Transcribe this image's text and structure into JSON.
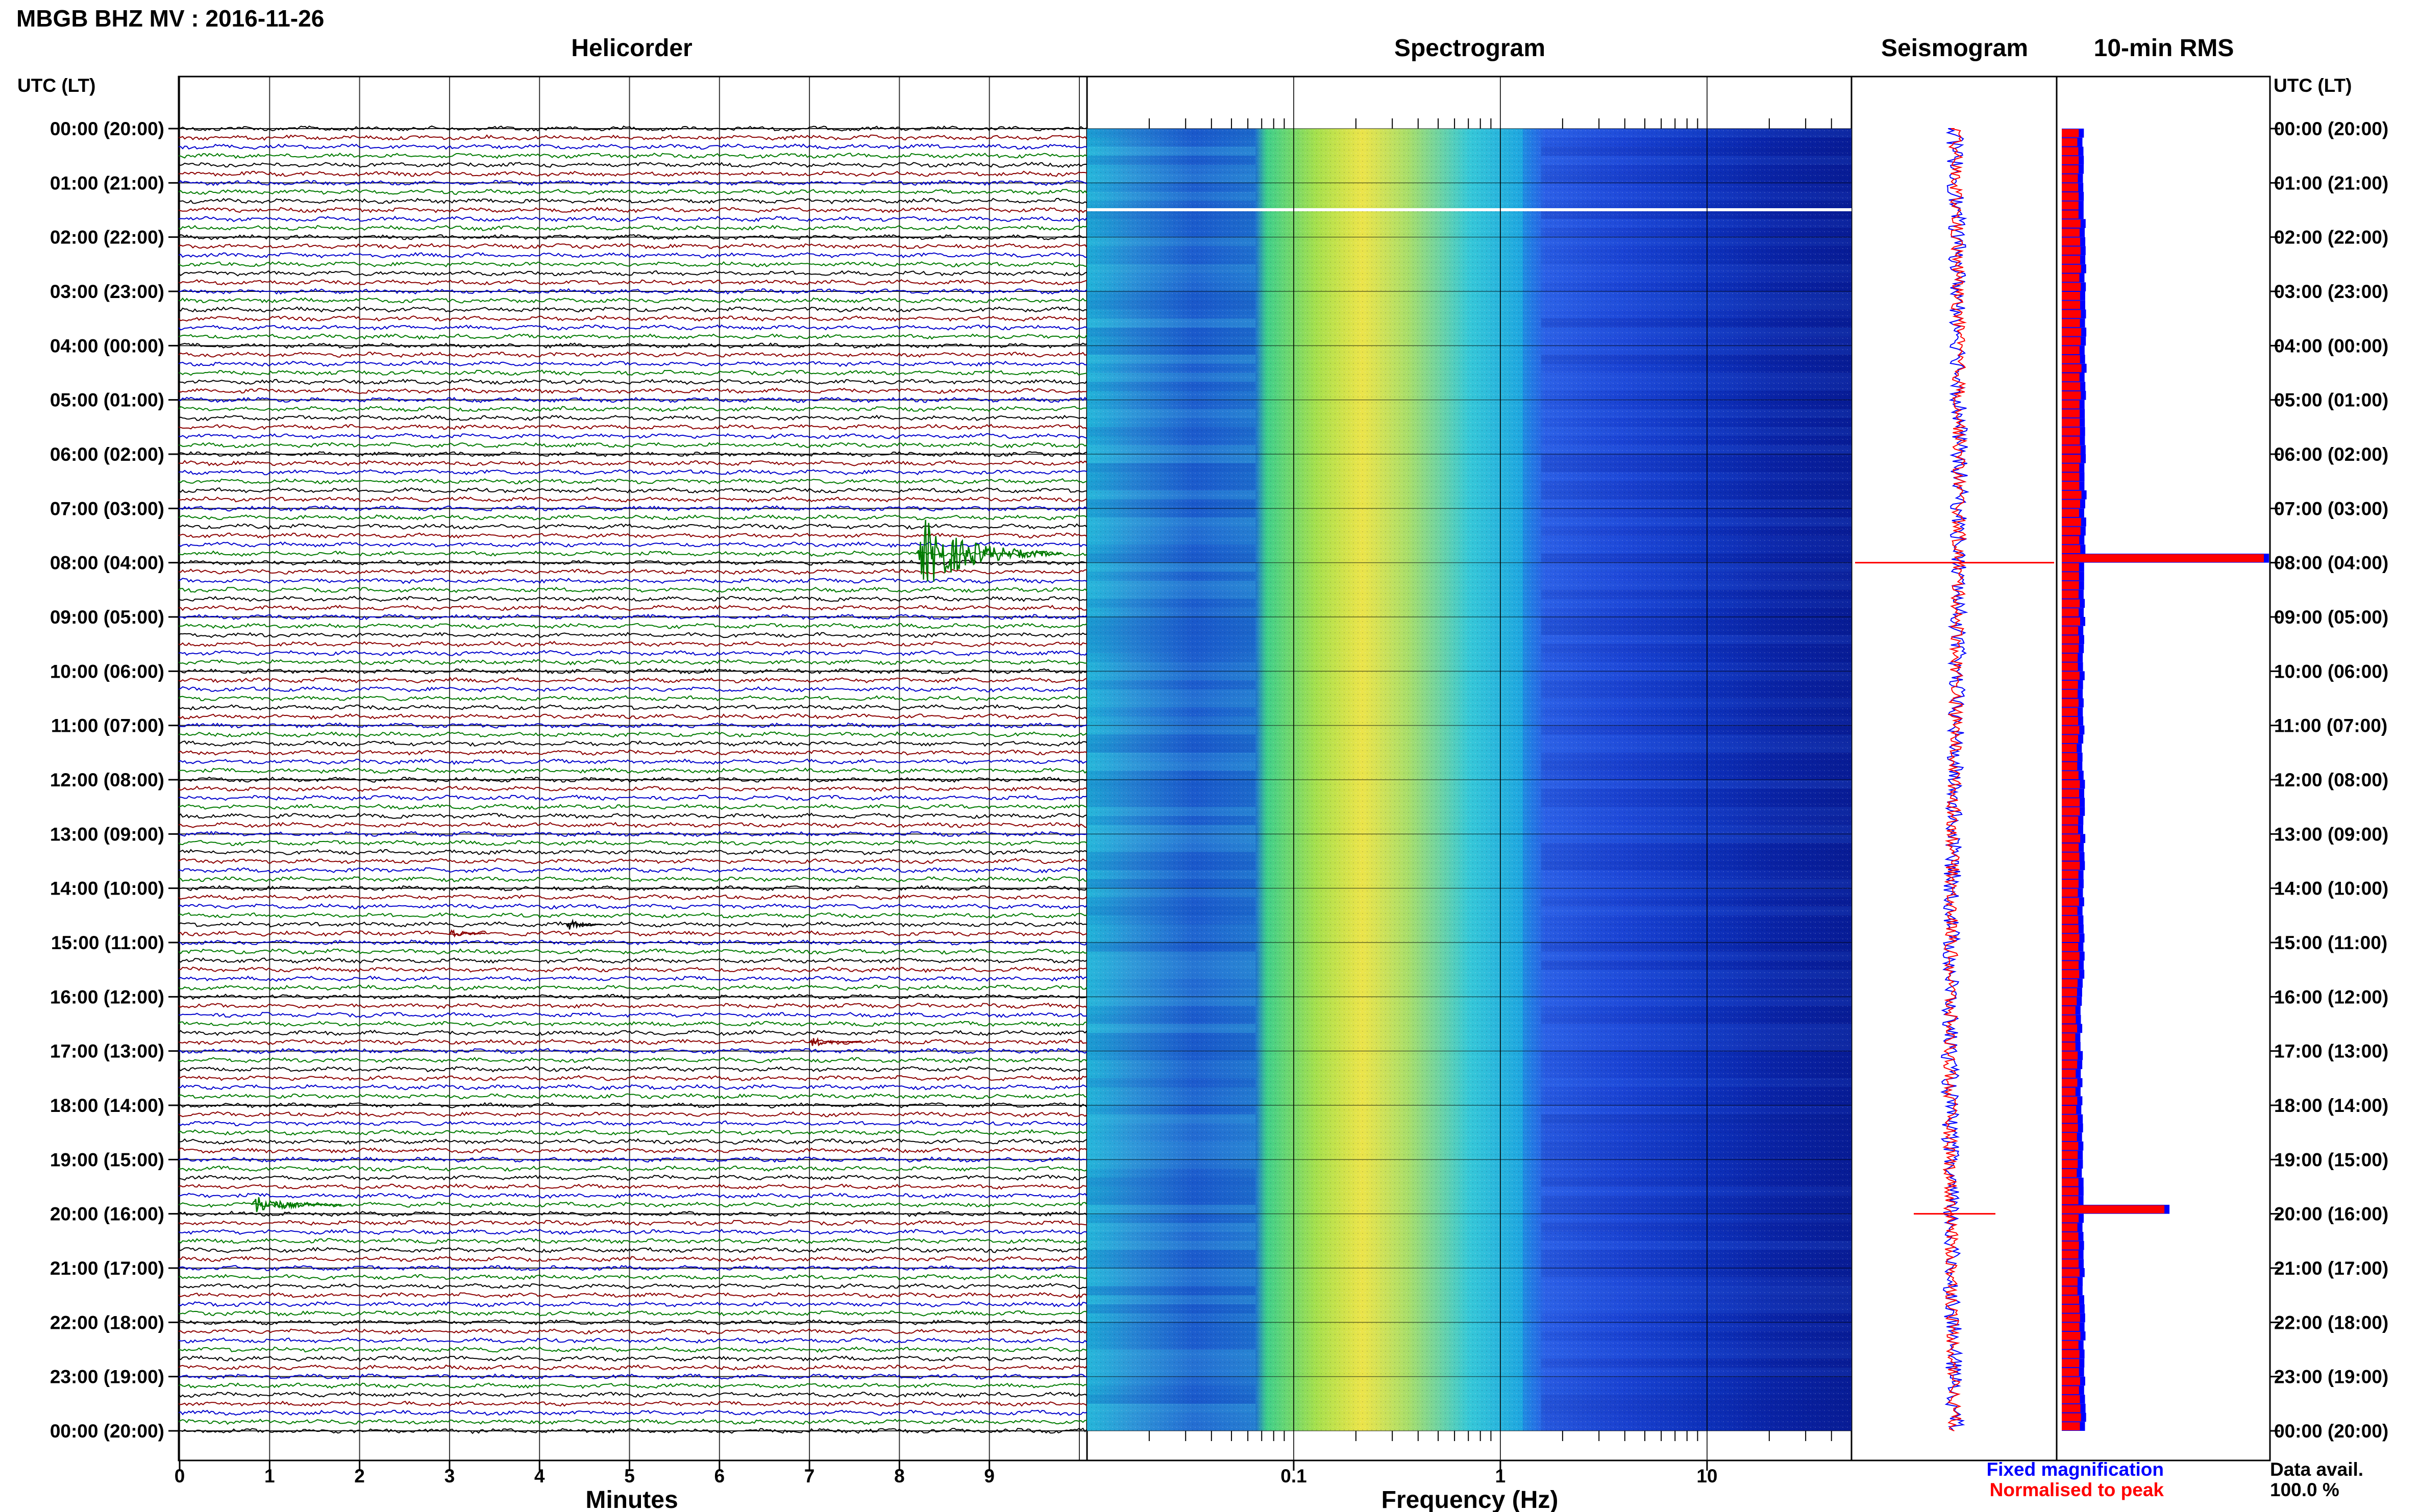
{
  "station_title": "MBGB BHZ MV : 2016-11-26",
  "time_header_left": "UTC (LT)",
  "time_header_right": "UTC (LT)",
  "colors": {
    "trace_cycle": [
      "#000000",
      "#8b0000",
      "#0000cc",
      "#007a00"
    ],
    "fixed": "#0000ff",
    "normalised": "#ff0000"
  },
  "chart_data": [
    {
      "type": "line",
      "name": "helicorder",
      "title": "Helicorder",
      "xlabel": "Minutes",
      "x_ticks": [
        "0",
        "1",
        "2",
        "3",
        "4",
        "5",
        "6",
        "7",
        "8",
        "9"
      ],
      "xlim": [
        0,
        10
      ],
      "row_minutes": 10,
      "rows": 144,
      "events": [
        {
          "time_utc": "07:50",
          "minute": 8.2,
          "amplitude": 9,
          "duration_min": 1.6
        },
        {
          "time_utc": "14:40",
          "minute": 4.3,
          "amplitude": 1.5,
          "duration_min": 0.4
        },
        {
          "time_utc": "14:50",
          "minute": 3.0,
          "amplitude": 1.4,
          "duration_min": 0.4
        },
        {
          "time_utc": "16:50",
          "minute": 7.0,
          "amplitude": 1.2,
          "duration_min": 0.6
        },
        {
          "time_utc": "19:50",
          "minute": 0.8,
          "amplitude": 2.5,
          "duration_min": 1.0
        }
      ]
    },
    {
      "type": "heatmap",
      "name": "spectrogram",
      "title": "Spectrogram",
      "xlabel": "Frequency (Hz)",
      "x_scale": "log",
      "xlim": [
        0.01,
        50
      ],
      "x_ticks": [
        "0.1",
        "1",
        "10"
      ],
      "x_tick_values": [
        0.1,
        1,
        10
      ]
    },
    {
      "type": "line",
      "name": "seismogram",
      "title": "Seismogram",
      "spikes_utc": [
        "07:50",
        "19:50"
      ]
    },
    {
      "type": "bar",
      "name": "rms",
      "title": "10-min RMS",
      "legend": [
        "Fixed magnification",
        "Normalised to peak"
      ],
      "legend_position": "bottom",
      "spikes_utc": [
        {
          "time_utc": "07:50",
          "relative": 1.0
        },
        {
          "time_utc": "19:50",
          "relative": 0.52
        }
      ]
    }
  ],
  "time_ticks": [
    "00:00 (20:00)",
    "01:00 (21:00)",
    "02:00 (22:00)",
    "03:00 (23:00)",
    "04:00 (00:00)",
    "05:00 (01:00)",
    "06:00 (02:00)",
    "07:00 (03:00)",
    "08:00 (04:00)",
    "09:00 (05:00)",
    "10:00 (06:00)",
    "11:00 (07:00)",
    "12:00 (08:00)",
    "13:00 (09:00)",
    "14:00 (10:00)",
    "15:00 (11:00)",
    "16:00 (12:00)",
    "17:00 (13:00)",
    "18:00 (14:00)",
    "19:00 (15:00)",
    "20:00 (16:00)",
    "21:00 (17:00)",
    "22:00 (18:00)",
    "23:00 (19:00)",
    "00:00 (20:00)"
  ],
  "data_avail": {
    "label": "Data avail.",
    "value": "100.0 %"
  }
}
